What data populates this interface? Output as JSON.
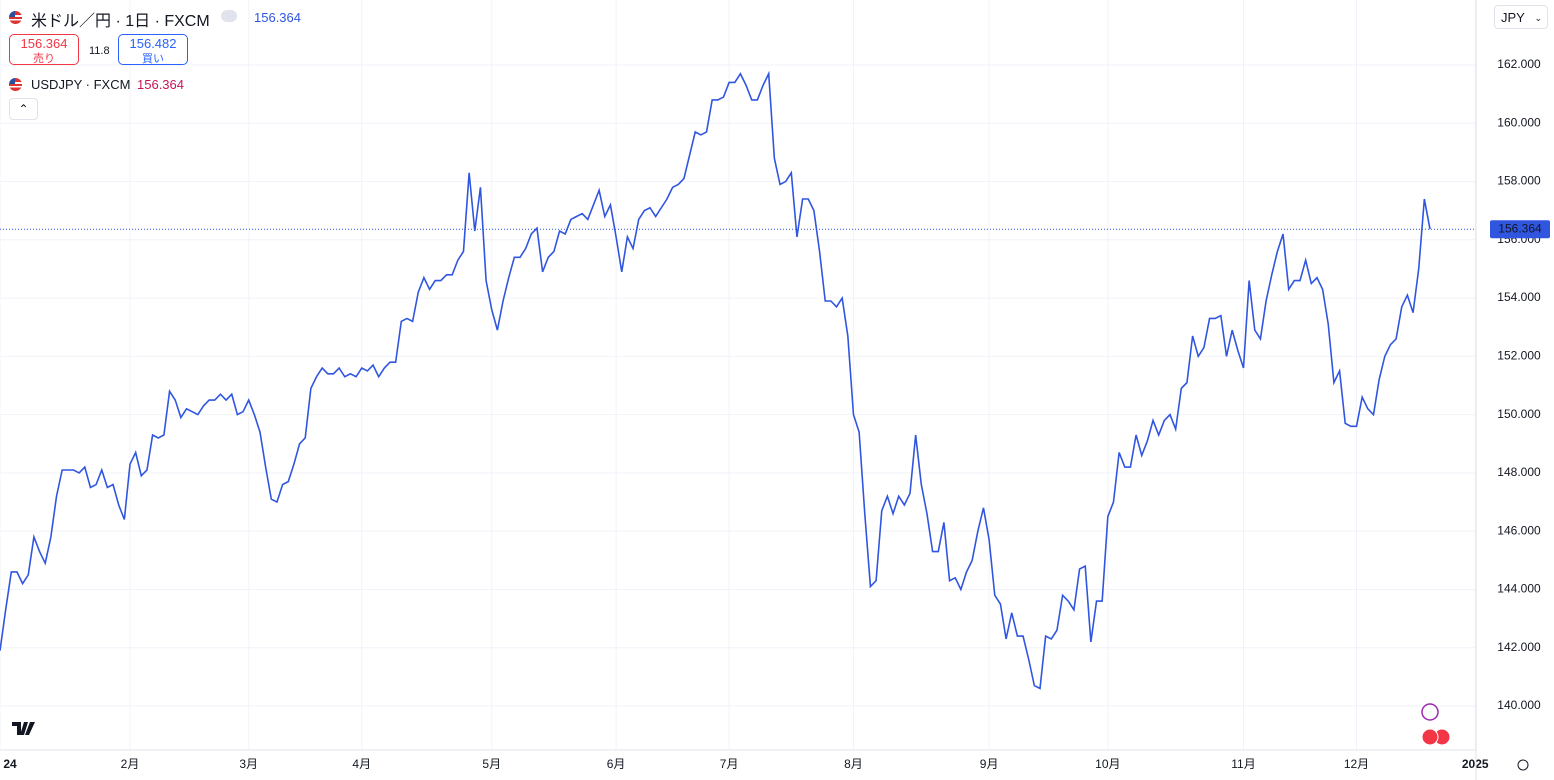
{
  "header": {
    "title": "米ドル／円 · 1日 · FXCM",
    "price": "156.364",
    "bid": "156.364",
    "bid_label": "売り",
    "spread": "11.8",
    "ask": "156.482",
    "ask_label": "買い",
    "symbol_price": "156.364",
    "currency": "JPY"
  },
  "chart_data": {
    "type": "line",
    "categories": [
      "24",
      null,
      null,
      null,
      null,
      null,
      null,
      null,
      null,
      null,
      null,
      null,
      null,
      null,
      null,
      null,
      null,
      null,
      null,
      null,
      null,
      null,
      null,
      "2月",
      null,
      null,
      null,
      null,
      null,
      null,
      null,
      null,
      null,
      null,
      null,
      null,
      null,
      null,
      null,
      null,
      null,
      null,
      null,
      null,
      "3月",
      null,
      null,
      null,
      null,
      null,
      null,
      null,
      null,
      null,
      null,
      null,
      null,
      null,
      null,
      null,
      null,
      null,
      null,
      null,
      "4月",
      null,
      null,
      null,
      null,
      null,
      null,
      null,
      null,
      null,
      null,
      null,
      null,
      null,
      null,
      null,
      null,
      null,
      null,
      null,
      null,
      null,
      null,
      "5月",
      null,
      null,
      null,
      null,
      null,
      null,
      null,
      null,
      null,
      null,
      null,
      null,
      null,
      null,
      null,
      null,
      null,
      null,
      null,
      null,
      null,
      "6月",
      null,
      null,
      null,
      null,
      null,
      null,
      null,
      null,
      null,
      null,
      null,
      null,
      null,
      null,
      null,
      null,
      null,
      null,
      null,
      "7月",
      null,
      null,
      null,
      null,
      null,
      null,
      null,
      null,
      null,
      null,
      null,
      null,
      null,
      null,
      null,
      null,
      null,
      null,
      null,
      null,
      null,
      "8月",
      null,
      null,
      null,
      null,
      null,
      null,
      null,
      null,
      null,
      null,
      null,
      null,
      null,
      null,
      null,
      null,
      null,
      null,
      null,
      null,
      null,
      null,
      null,
      "9月",
      null,
      null,
      null,
      null,
      null,
      null,
      null,
      null,
      null,
      null,
      null,
      null,
      null,
      null,
      null,
      null,
      null,
      null,
      null,
      null,
      "10月",
      null,
      null,
      null,
      null,
      null,
      null,
      null,
      null,
      null,
      null,
      null,
      null,
      null,
      null,
      null,
      null,
      null,
      null,
      null,
      null,
      null,
      null,
      null,
      "11月",
      null,
      null,
      null,
      null,
      null,
      null,
      null,
      null,
      null,
      null,
      null,
      null,
      null,
      null,
      null,
      null,
      null,
      null,
      null,
      "12月",
      null,
      null,
      null,
      null,
      null,
      null,
      null,
      null,
      null,
      null,
      null,
      null,
      null,
      null,
      null,
      null,
      null,
      null,
      null,
      null,
      "2025"
    ],
    "series": [
      {
        "name": "USDJPY · FXCM",
        "color": "#3056e0",
        "values": [
          141.9,
          143.3,
          144.6,
          144.6,
          144.2,
          144.5,
          145.8,
          145.3,
          144.9,
          145.8,
          147.2,
          148.1,
          148.1,
          148.1,
          148.0,
          148.2,
          147.5,
          147.6,
          148.1,
          147.5,
          147.6,
          146.9,
          146.4,
          148.3,
          148.7,
          147.9,
          148.1,
          149.3,
          149.2,
          149.3,
          150.8,
          150.5,
          149.9,
          150.2,
          150.1,
          150.0,
          150.3,
          150.5,
          150.5,
          150.7,
          150.5,
          150.7,
          150.0,
          150.1,
          150.5,
          150.0,
          149.4,
          148.2,
          147.1,
          147.0,
          147.6,
          147.7,
          148.3,
          149.0,
          149.2,
          150.9,
          151.3,
          151.6,
          151.4,
          151.4,
          151.6,
          151.3,
          151.4,
          151.3,
          151.6,
          151.5,
          151.7,
          151.3,
          151.6,
          151.8,
          151.8,
          153.2,
          153.3,
          153.2,
          154.2,
          154.7,
          154.3,
          154.6,
          154.6,
          154.8,
          154.8,
          155.3,
          155.6,
          158.3,
          156.3,
          157.8,
          154.6,
          153.6,
          152.9,
          153.9,
          154.7,
          155.4,
          155.4,
          155.7,
          156.2,
          156.4,
          154.9,
          155.4,
          155.6,
          156.3,
          156.2,
          156.7,
          156.8,
          156.9,
          156.7,
          157.2,
          157.7,
          156.8,
          157.2,
          156.1,
          154.9,
          156.1,
          155.7,
          156.7,
          157.0,
          157.1,
          156.8,
          157.1,
          157.4,
          157.8,
          157.9,
          158.1,
          158.9,
          159.7,
          159.6,
          159.7,
          160.8,
          160.8,
          160.9,
          161.4,
          161.4,
          161.7,
          161.3,
          160.8,
          160.8,
          161.3,
          161.7,
          158.8,
          157.9,
          158.0,
          158.3,
          156.1,
          157.4,
          157.4,
          157.0,
          155.6,
          153.9,
          153.9,
          153.7,
          154.0,
          152.7,
          150.0,
          149.4,
          146.6,
          144.1,
          144.3,
          146.7,
          147.2,
          146.6,
          147.2,
          146.9,
          147.3,
          149.3,
          147.6,
          146.6,
          145.3,
          145.3,
          146.3,
          144.3,
          144.4,
          144.0,
          144.6,
          145.0,
          146.0,
          146.8,
          145.7,
          143.8,
          143.5,
          142.3,
          143.2,
          142.4,
          142.4,
          141.6,
          140.7,
          140.6,
          142.4,
          142.3,
          142.6,
          143.8,
          143.6,
          143.3,
          144.7,
          144.8,
          142.2,
          143.6,
          143.6,
          146.5,
          147.0,
          148.7,
          148.2,
          148.2,
          149.3,
          148.6,
          149.1,
          149.8,
          149.3,
          149.8,
          150.0,
          149.5,
          150.9,
          151.1,
          152.7,
          152.0,
          152.3,
          153.3,
          153.3,
          153.4,
          152.0,
          152.9,
          152.2,
          151.6,
          154.6,
          152.9,
          152.6,
          153.9,
          154.8,
          155.6,
          156.2,
          154.3,
          154.6,
          154.6,
          155.3,
          154.5,
          154.7,
          154.3,
          153.1,
          151.1,
          151.5,
          149.7,
          149.6,
          149.6,
          150.6,
          150.2,
          150.0,
          151.2,
          152.0,
          152.4,
          152.6,
          153.7,
          154.1,
          153.5,
          155.0,
          157.4,
          156.364,
          null,
          null,
          null,
          null,
          null,
          null,
          null,
          null
        ]
      }
    ],
    "ylim": [
      138.49,
      164.23
    ],
    "yticks": [
      {
        "value": 140,
        "label": "140.000"
      },
      {
        "value": 142,
        "label": "142.000"
      },
      {
        "value": 144,
        "label": "144.000"
      },
      {
        "value": 146,
        "label": "146.000"
      },
      {
        "value": 148,
        "label": "148.000"
      },
      {
        "value": 150,
        "label": "150.000"
      },
      {
        "value": 152,
        "label": "152.000"
      },
      {
        "value": 154,
        "label": "154.000"
      },
      {
        "value": 156,
        "label": "156.000"
      },
      {
        "value": 158,
        "label": "158.000"
      },
      {
        "value": 160,
        "label": "160.000"
      },
      {
        "value": 162,
        "label": "162.000"
      }
    ],
    "grid": true
  }
}
